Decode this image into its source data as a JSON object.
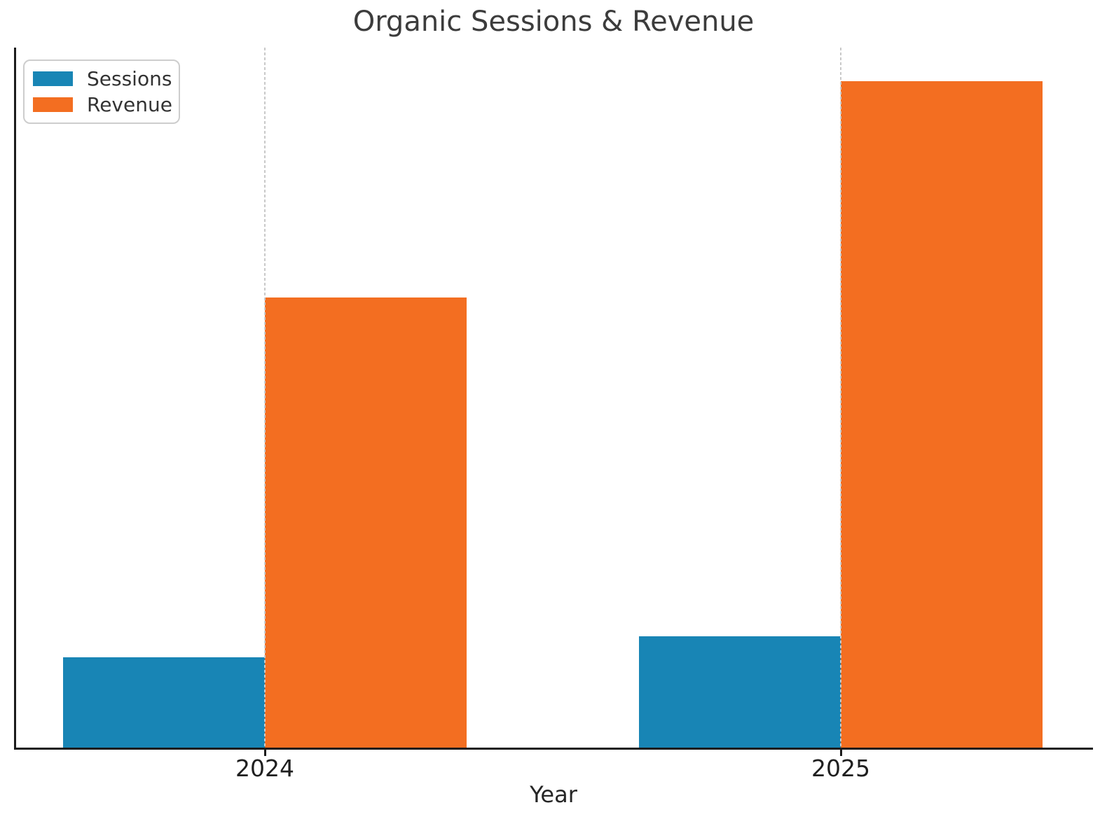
{
  "chart_data": {
    "type": "bar",
    "title": "Organic Sessions & Revenue",
    "xlabel": "Year",
    "ylabel": "",
    "categories": [
      "2024",
      "2025"
    ],
    "series": [
      {
        "name": "Sessions",
        "color": "#1885b5",
        "values": [
          8100,
          10000
        ]
      },
      {
        "name": "Revenue",
        "color": "#f36e21",
        "values": [
          40500,
          60000
        ]
      }
    ],
    "ylim": [
      0,
      63000
    ],
    "y_tick_labels": [],
    "grid": "vertical dashed gridlines at each category center",
    "legend_position": "upper-left",
    "style": {
      "axis_color": "#1c1c1c",
      "grid_color": "#c9c9c9",
      "tick_label_color": "#1f1f1f",
      "title_color": "#3c3c3c",
      "background": "#ffffff"
    }
  }
}
